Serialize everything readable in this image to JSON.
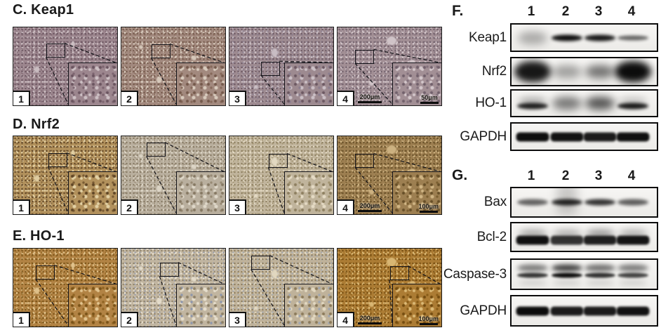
{
  "figure": {
    "ihc_panels": [
      {
        "label": "C. Keap1",
        "tiles": [
          {
            "num": "1",
            "colors": {
              "base": "#9c868e",
              "dot": "#6a545f",
              "dot2": "#7d6570",
              "lt": "#cdc0c4"
            }
          },
          {
            "num": "2",
            "colors": {
              "base": "#a2897e",
              "dot": "#74594b",
              "dot2": "#86695a",
              "lt": "#d8cbbd"
            }
          },
          {
            "num": "3",
            "colors": {
              "base": "#9d8a90",
              "dot": "#6c5862",
              "dot2": "#8a7d8e",
              "lt": "#cbc0c6"
            }
          },
          {
            "num": "4",
            "colors": {
              "base": "#a28f95",
              "dot": "#71606b",
              "dot2": "#84727d",
              "lt": "#d3c7cb"
            },
            "scale_main": "200μm",
            "scale_inset": "50μm"
          }
        ]
      },
      {
        "label": "D. Nrf2",
        "tiles": [
          {
            "num": "1",
            "colors": {
              "base": "#b2915c",
              "dot": "#5f4526",
              "dot2": "#7a5c34",
              "lt": "#e2d0a4"
            }
          },
          {
            "num": "2",
            "colors": {
              "base": "#b9af9e",
              "dot": "#857862",
              "dot2": "#978a74",
              "lt": "#ded7c8"
            }
          },
          {
            "num": "3",
            "colors": {
              "base": "#c0b49c",
              "dot": "#8d7f60",
              "dot2": "#a0926f",
              "lt": "#e4dac4"
            }
          },
          {
            "num": "4",
            "colors": {
              "base": "#9d7f51",
              "dot": "#674f28",
              "dot2": "#7b5f31",
              "lt": "#d0b584"
            },
            "scale_main": "200μm",
            "scale_inset": "100μm"
          }
        ]
      },
      {
        "label": "E. HO-1",
        "tiles": [
          {
            "num": "1",
            "colors": {
              "base": "#b28344",
              "dot": "#7a5318",
              "dot2": "#8f6422",
              "lt": "#e2c48e"
            }
          },
          {
            "num": "2",
            "colors": {
              "base": "#c1b5a0",
              "dot": "#8e8168",
              "dot2": "#8d96ab",
              "lt": "#e6decd"
            }
          },
          {
            "num": "3",
            "colors": {
              "base": "#bfb29a",
              "dot": "#8b7a5a",
              "dot2": "#9da5b2",
              "lt": "#e3d9c2"
            }
          },
          {
            "num": "4",
            "colors": {
              "base": "#ac7c34",
              "dot": "#744c10",
              "dot2": "#8a5d18",
              "lt": "#dcba77"
            },
            "scale_main": "200μm",
            "scale_inset": "100μm"
          }
        ]
      }
    ],
    "blot_panels": [
      {
        "label": "F.",
        "lanes": [
          "1",
          "2",
          "3",
          "4"
        ],
        "rows": [
          {
            "protein": "Keap1",
            "bands": [
              {
                "t": "smear",
                "i": 0.3
              },
              {
                "t": "band",
                "i": 0.97
              },
              {
                "t": "band",
                "i": 0.92
              },
              {
                "t": "thin",
                "i": 0.58
              }
            ]
          },
          {
            "protein": "Nrf2",
            "bands": [
              {
                "t": "blob",
                "i": 0.92
              },
              {
                "t": "smear",
                "i": 0.35
              },
              {
                "t": "smear",
                "i": 0.55
              },
              {
                "t": "blob",
                "i": 0.97
              }
            ]
          },
          {
            "protein": "HO-1",
            "bands": [
              {
                "t": "band",
                "i": 0.88,
                "s": 0.3
              },
              {
                "t": "smear",
                "i": 0.52
              },
              {
                "t": "smear",
                "i": 0.68
              },
              {
                "t": "band",
                "i": 0.9,
                "s": 0.2
              }
            ]
          },
          {
            "protein": "GAPDH",
            "bands": [
              {
                "t": "thick",
                "i": 0.96
              },
              {
                "t": "thick",
                "i": 0.94
              },
              {
                "t": "thick",
                "i": 0.9
              },
              {
                "t": "thick",
                "i": 0.95
              }
            ]
          }
        ]
      },
      {
        "label": "G.",
        "lanes": [
          "1",
          "2",
          "3",
          "4"
        ],
        "rows": [
          {
            "protein": "Bax",
            "bands": [
              {
                "t": "band",
                "i": 0.6
              },
              {
                "t": "band",
                "i": 0.85,
                "vs": 0.18
              },
              {
                "t": "band",
                "i": 0.8
              },
              {
                "t": "band",
                "i": 0.62
              }
            ]
          },
          {
            "protein": "Bcl-2",
            "bands": [
              {
                "t": "thick",
                "i": 0.95,
                "s": 0.35
              },
              {
                "t": "thick",
                "i": 0.8,
                "s": 0.3
              },
              {
                "t": "thick",
                "i": 0.88,
                "s": 0.42
              },
              {
                "t": "thick",
                "i": 0.93,
                "s": 0.3
              }
            ]
          },
          {
            "protein": "Caspase-3",
            "bands": [
              {
                "t": "double",
                "i": 0.78,
                "s": 0.5
              },
              {
                "t": "double",
                "i": 0.95,
                "s": 0.75
              },
              {
                "t": "double",
                "i": 0.8,
                "s": 0.55
              },
              {
                "t": "double",
                "i": 0.72,
                "s": 0.5
              }
            ]
          },
          {
            "protein": "GAPDH",
            "bands": [
              {
                "t": "thick",
                "i": 0.97
              },
              {
                "t": "thick",
                "i": 0.9
              },
              {
                "t": "thick",
                "i": 0.9
              },
              {
                "t": "thick",
                "i": 0.94
              }
            ]
          }
        ]
      }
    ]
  }
}
